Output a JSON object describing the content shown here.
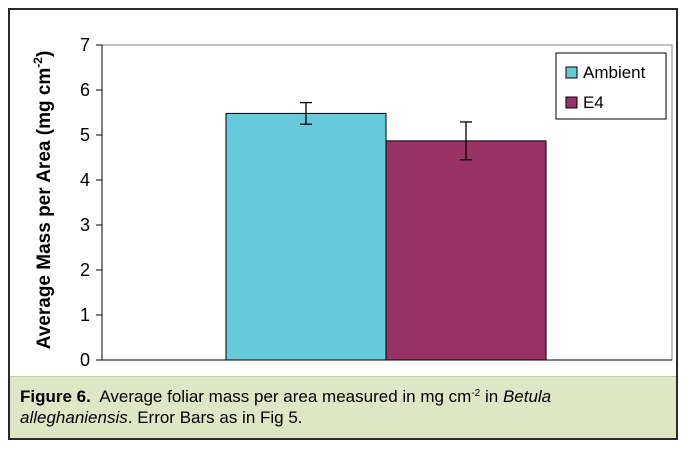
{
  "chart_data": {
    "type": "bar",
    "categories": [
      ""
    ],
    "series": [
      {
        "name": "Ambient",
        "values": [
          5.48
        ],
        "error": [
          0.24
        ],
        "color": "#66c9dc"
      },
      {
        "name": "E4",
        "values": [
          4.87
        ],
        "error": [
          0.42
        ],
        "color": "#993366"
      }
    ],
    "ylabel": "Average Mass per Area (mg cm",
    "ylabel_sup": "-2",
    "ylabel_close": ")",
    "ylim": [
      0,
      7
    ],
    "yticks": [
      "0",
      "1",
      "2",
      "3",
      "4",
      "5",
      "6",
      "7"
    ],
    "grid": false,
    "legend_position": "top-right"
  },
  "caption": {
    "label": "Figure 6.",
    "text1": "Average foliar mass per area measured in mg cm",
    "sup": "-2",
    "text2": " in ",
    "species": "Betula alleghaniensis",
    "text3": ".  Error Bars as in Fig 5."
  }
}
